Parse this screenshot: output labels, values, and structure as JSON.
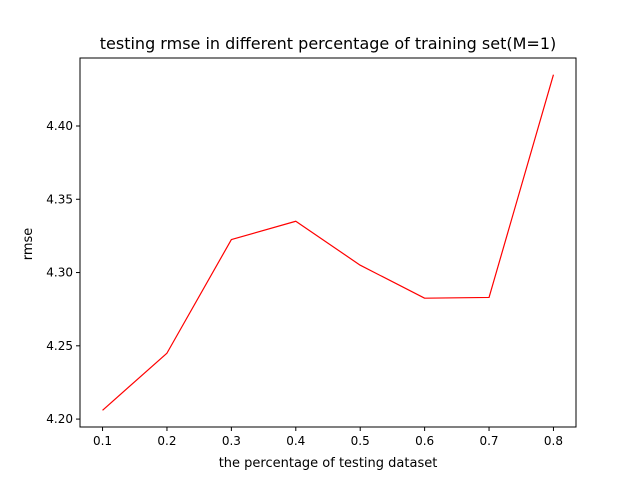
{
  "chart_data": {
    "type": "line",
    "title": "testing rmse in different percentage of training set(M=1)",
    "xlabel": "the percentage of testing dataset",
    "ylabel": "rmse",
    "x": [
      0.1,
      0.2,
      0.3,
      0.4,
      0.5,
      0.6,
      0.7,
      0.8
    ],
    "series": [
      {
        "values": [
          4.206,
          4.245,
          4.3225,
          4.335,
          4.305,
          4.2825,
          4.283,
          4.435
        ],
        "color": "#ff0000"
      }
    ],
    "xticks": [
      0.1,
      0.2,
      0.3,
      0.4,
      0.5,
      0.6,
      0.7,
      0.8
    ],
    "xtick_labels": [
      "0.1",
      "0.2",
      "0.3",
      "0.4",
      "0.5",
      "0.6",
      "0.7",
      "0.8"
    ],
    "yticks": [
      4.2,
      4.25,
      4.3,
      4.35,
      4.4
    ],
    "ytick_labels": [
      "4.20",
      "4.25",
      "4.30",
      "4.35",
      "4.40"
    ],
    "xlim": [
      0.065,
      0.835
    ],
    "ylim": [
      4.1946,
      4.4464
    ],
    "grid": false,
    "legend": "none"
  }
}
